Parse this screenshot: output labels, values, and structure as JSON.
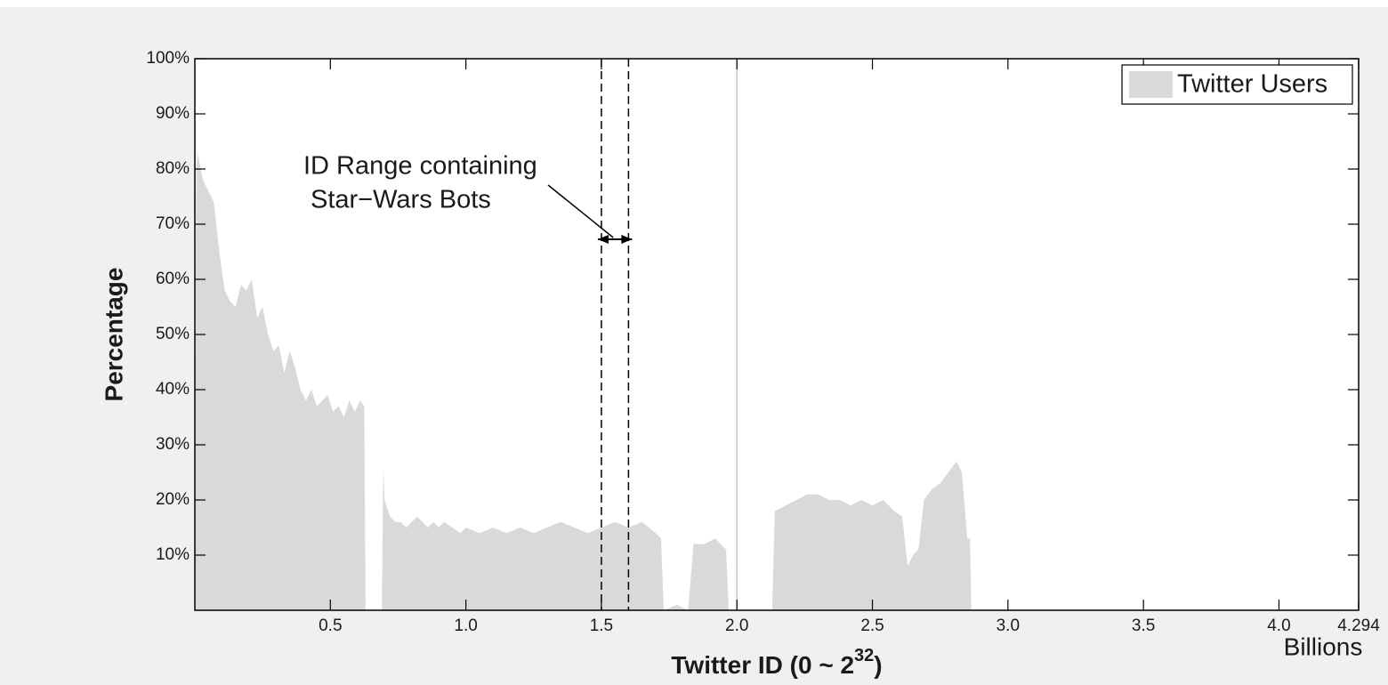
{
  "chart_data": {
    "type": "area",
    "ylabel": "Percentage",
    "xlabel": {
      "text": "Twitter ID (0 ~ 2",
      "superscript": "32",
      "suffix": ")"
    },
    "x_unit": "Billions",
    "annotation": [
      "ID Range containing",
      "Star−Wars Bots"
    ],
    "range_lines": [
      1.5,
      1.6
    ],
    "marker_lines": [
      {
        "x": 2.0,
        "color": "#c8c8c8"
      }
    ],
    "legend_position": "top-right",
    "xlim": [
      0,
      4.294
    ],
    "ylim": [
      0,
      100
    ],
    "xticks": [
      0.5,
      {
        "value": 1,
        "label": "1.0"
      },
      1.5,
      {
        "value": 2,
        "label": "2.0"
      },
      2.5,
      {
        "value": 3,
        "label": "3.0"
      },
      3.5,
      {
        "value": 4,
        "label": "4.0"
      },
      4.294
    ],
    "yticks": [
      {
        "value": 10,
        "label": "10%"
      },
      {
        "value": 20,
        "label": "20%"
      },
      {
        "value": 30,
        "label": "30%"
      },
      {
        "value": 40,
        "label": "40%"
      },
      {
        "value": 50,
        "label": "50%"
      },
      {
        "value": 60,
        "label": "60%"
      },
      {
        "value": 70,
        "label": "70%"
      },
      {
        "value": 80,
        "label": "80%"
      },
      {
        "value": 90,
        "label": "90%"
      },
      {
        "value": 100,
        "label": "100%"
      }
    ],
    "series": [
      {
        "name": "Twitter Users",
        "color": "#d9d9d9",
        "x": [
          0,
          0.005,
          0.01,
          0.03,
          0.05,
          0.07,
          0.09,
          0.11,
          0.13,
          0.15,
          0.17,
          0.19,
          0.21,
          0.23,
          0.25,
          0.27,
          0.29,
          0.31,
          0.33,
          0.35,
          0.37,
          0.39,
          0.41,
          0.43,
          0.45,
          0.47,
          0.49,
          0.51,
          0.53,
          0.55,
          0.57,
          0.59,
          0.61,
          0.625,
          0.63,
          0.69,
          0.695,
          0.7,
          0.72,
          0.74,
          0.76,
          0.78,
          0.8,
          0.82,
          0.84,
          0.86,
          0.88,
          0.9,
          0.92,
          0.95,
          0.98,
          1.0,
          1.05,
          1.1,
          1.15,
          1.2,
          1.25,
          1.3,
          1.35,
          1.4,
          1.45,
          1.5,
          1.55,
          1.6,
          1.65,
          1.7,
          1.72,
          1.73,
          1.78,
          1.82,
          1.84,
          1.88,
          1.92,
          1.96,
          1.97,
          2.13,
          2.14,
          2.18,
          2.22,
          2.26,
          2.3,
          2.34,
          2.38,
          2.42,
          2.46,
          2.5,
          2.54,
          2.58,
          2.61,
          2.63,
          2.65,
          2.67,
          2.69,
          2.72,
          2.75,
          2.78,
          2.81,
          2.83,
          2.85,
          2.86,
          2.865,
          4.294
        ],
        "values": [
          0,
          80,
          83,
          78,
          76,
          74,
          65,
          58,
          56,
          55,
          59,
          58,
          60,
          53,
          55,
          50,
          47,
          48,
          43,
          47,
          44,
          40,
          38,
          40,
          37,
          38,
          39,
          36,
          37,
          35,
          38,
          36,
          38,
          37,
          0,
          0,
          26,
          20,
          17,
          16,
          16,
          15,
          16,
          17,
          16,
          15,
          16,
          15,
          16,
          15,
          14,
          15,
          14,
          15,
          14,
          15,
          14,
          15,
          16,
          15,
          14,
          15,
          16,
          15,
          16,
          14,
          13,
          0,
          1,
          0,
          12,
          12,
          13,
          11,
          0,
          0,
          18,
          19,
          20,
          21,
          21,
          20,
          20,
          19,
          20,
          19,
          20,
          18,
          17,
          8,
          10,
          11,
          20,
          22,
          23,
          25,
          27,
          25,
          13,
          13,
          0,
          0
        ]
      }
    ]
  }
}
